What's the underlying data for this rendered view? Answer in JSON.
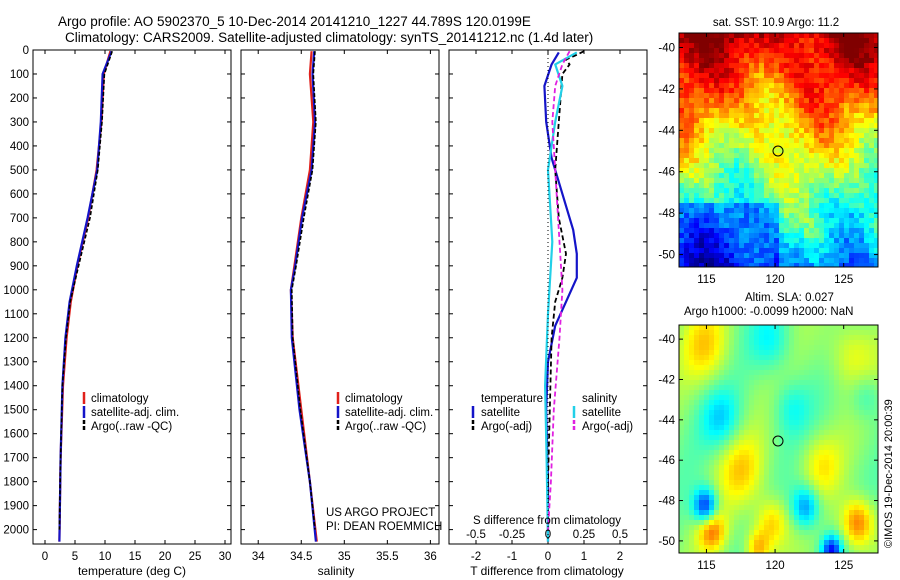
{
  "header": {
    "title_line1": "Argo profile: AO 5902370_5 10-Dec-2014 20141210_1227 44.789S 120.0199E",
    "title_line2": "Climatology: CARS2009. Satellite-adjusted climatology: synTS_20141212.nc (1.4d later)"
  },
  "credits": {
    "project": "US ARGO PROJECT",
    "pi": "PI: DEAN ROEMMICH",
    "stamp": "©IMOS 19-Dec-2014 20:00:39"
  },
  "colors": {
    "climatology": "#e0201b",
    "satellite": "#1414c8",
    "argo": "#000000",
    "satellite_salinity": "#22d0e8",
    "argo_salinity": "#e020e0"
  },
  "chart_data": [
    {
      "type": "line",
      "name": "temperature-panel",
      "xlabel": "temperature (deg C)",
      "xticks": [
        0,
        5,
        10,
        15,
        20,
        25,
        30
      ],
      "xlim": [
        -2,
        31
      ],
      "ylim": [
        2060,
        0
      ],
      "yticks": [
        0,
        100,
        200,
        300,
        400,
        500,
        600,
        700,
        800,
        900,
        1000,
        1100,
        1200,
        1300,
        1400,
        1500,
        1600,
        1700,
        1800,
        1900,
        2000
      ],
      "legend": [
        "climatology",
        "satellite-adj. clim.",
        "Argo(..raw -QC)"
      ],
      "series": [
        {
          "name": "climatology",
          "depth": [
            5,
            100,
            300,
            500,
            700,
            900,
            1050,
            1200,
            1400,
            1700,
            2050
          ],
          "values": [
            10.9,
            9.8,
            9.4,
            8.6,
            7.2,
            5.4,
            4.3,
            3.6,
            3.0,
            2.6,
            2.4
          ]
        },
        {
          "name": "satellite-adj. clim.",
          "depth": [
            5,
            100,
            300,
            500,
            700,
            900,
            1050,
            1200,
            1400,
            1700,
            2050
          ],
          "values": [
            11.1,
            9.6,
            9.3,
            8.7,
            7.1,
            5.3,
            4.1,
            3.4,
            2.9,
            2.6,
            2.4
          ]
        },
        {
          "name": "Argo(..raw -QC)",
          "depth": [
            5,
            100,
            300,
            500,
            700,
            900,
            1050,
            1200,
            1400,
            1700,
            2000
          ],
          "values": [
            11.2,
            9.9,
            9.5,
            8.8,
            7.5,
            5.6,
            4.2,
            3.5,
            2.9,
            2.6,
            2.4
          ]
        }
      ]
    },
    {
      "type": "line",
      "name": "salinity-panel",
      "xlabel": "salinity",
      "xticks": [
        34,
        34.5,
        35,
        35.5,
        36
      ],
      "xlim": [
        33.8,
        36.1
      ],
      "ylim": [
        2060,
        0
      ],
      "legend": [
        "climatology",
        "satellite-adj. clim.",
        "Argo(..raw -QC)"
      ],
      "series": [
        {
          "name": "climatology",
          "depth": [
            5,
            100,
            300,
            500,
            700,
            900,
            1000,
            1200,
            1500,
            1800,
            2050
          ],
          "values": [
            34.62,
            34.6,
            34.64,
            34.6,
            34.5,
            34.42,
            34.38,
            34.4,
            34.5,
            34.6,
            34.68
          ]
        },
        {
          "name": "satellite-adj. clim.",
          "depth": [
            5,
            100,
            300,
            500,
            700,
            900,
            1000,
            1200,
            1500,
            1800,
            2050
          ],
          "values": [
            34.65,
            34.63,
            34.66,
            34.62,
            34.51,
            34.43,
            34.38,
            34.39,
            34.48,
            34.6,
            34.67
          ]
        },
        {
          "name": "Argo(..raw -QC)",
          "depth": [
            5,
            100,
            300,
            500,
            700,
            900,
            1000,
            1200,
            1500,
            1800,
            2000
          ],
          "values": [
            34.66,
            34.64,
            34.67,
            34.63,
            34.53,
            34.44,
            34.39,
            34.4,
            34.49,
            34.6,
            34.66
          ]
        }
      ]
    },
    {
      "type": "line",
      "name": "difference-panel",
      "xlabel": "T difference from climatology",
      "xticks": [
        -2,
        -1,
        0,
        1,
        2
      ],
      "top_label": "S difference from climatology",
      "top_ticks": [
        "-0.5",
        "-0.25",
        "0",
        "0.25",
        "0.5"
      ],
      "xlim": [
        -2.75,
        2.75
      ],
      "ylim": [
        2060,
        0
      ],
      "legend_left_title": "temperature",
      "legend_right_title": "salinity",
      "legend": [
        "satellite",
        "Argo(-adj)",
        "satellite",
        "Argo(-adj)"
      ],
      "series": [
        {
          "name": "satellite",
          "group": "temperature",
          "depth": [
            10,
            60,
            150,
            300,
            450,
            600,
            750,
            850,
            950,
            1050,
            1150,
            1300,
            1500,
            1800,
            2050
          ],
          "values": [
            0.3,
            0.1,
            -0.1,
            -0.05,
            0.1,
            0.4,
            0.7,
            0.8,
            0.8,
            0.5,
            0.2,
            0.0,
            -0.05,
            0.0,
            0.0
          ]
        },
        {
          "name": "Argo(-adj)",
          "group": "temperature",
          "depth": [
            5,
            20,
            40,
            60,
            100,
            300,
            500,
            700,
            850,
            950,
            1050,
            1200,
            1500,
            1800,
            2000
          ],
          "values": [
            1.0,
            0.8,
            0.5,
            0.6,
            0.4,
            0.3,
            0.2,
            0.3,
            0.5,
            0.4,
            0.2,
            0.1,
            0.05,
            0.0,
            0.0
          ]
        },
        {
          "name": "satellite",
          "group": "salinity",
          "depth": [
            10,
            60,
            150,
            300,
            500,
            800,
            1100,
            1400,
            1700,
            2050
          ],
          "values": [
            0.2,
            0.05,
            0.1,
            0.05,
            0.0,
            0.03,
            0.0,
            -0.02,
            -0.01,
            0.0
          ]
        },
        {
          "name": "Argo(-adj)",
          "group": "salinity",
          "depth": [
            5,
            60,
            150,
            300,
            500,
            800,
            1000,
            1200,
            1500,
            1800,
            2000
          ],
          "values": [
            0.15,
            0.1,
            0.05,
            0.03,
            0.05,
            0.08,
            0.1,
            0.08,
            0.04,
            0.02,
            0.0
          ]
        }
      ]
    },
    {
      "type": "heatmap",
      "name": "sst-map",
      "title": "sat. SST: 10.9 Argo: 11.2",
      "xticks": [
        115,
        120,
        125
      ],
      "yticks": [
        -40,
        -42,
        -44,
        -46,
        -48,
        -50
      ],
      "xlim": [
        113,
        127.5
      ],
      "ylim": [
        -50.6,
        -39.3
      ],
      "marker": {
        "lon": 120.02,
        "lat": -44.79
      }
    },
    {
      "type": "heatmap",
      "name": "sla-map",
      "title_line1": "Altim. SLA: 0.027",
      "title_line2": "Argo h1000: -0.0099 h2000: NaN",
      "xticks": [
        115,
        120,
        125
      ],
      "yticks": [
        -40,
        -42,
        -44,
        -46,
        -48,
        -50
      ],
      "xlim": [
        113,
        127.5
      ],
      "ylim": [
        -50.6,
        -39.3
      ],
      "marker": {
        "lon": 120.02,
        "lat": -44.79
      }
    }
  ]
}
